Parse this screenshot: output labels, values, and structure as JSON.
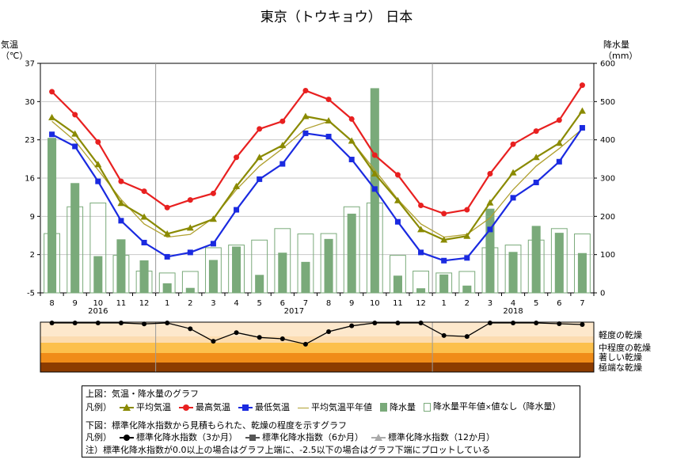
{
  "page": {
    "title": "東京（トウキョウ） 日本"
  },
  "colors": {
    "avg": "#8a8a00",
    "max": "#e82020",
    "min": "#1a2ae0",
    "avg_normal": "#b0a030",
    "bar": "#7aaa7a",
    "dry_mild": "#fcdcb0",
    "dry_moderate": "#fcc04c",
    "dry_severe": "#f08c18",
    "dry_extreme": "#8c3c00"
  },
  "chart_data": [
    {
      "type": "line",
      "title": "東京（トウキョウ） 日本",
      "months": [
        "8",
        "9",
        "10",
        "11",
        "12",
        "1",
        "2",
        "3",
        "4",
        "5",
        "6",
        "7",
        "8",
        "9",
        "10",
        "11",
        "12",
        "1",
        "2",
        "3",
        "4",
        "5",
        "6",
        "7"
      ],
      "years": [
        {
          "label": "2016",
          "from": 0,
          "to": 4
        },
        {
          "label": "2017",
          "from": 5,
          "to": 16
        },
        {
          "label": "2018",
          "from": 17,
          "to": 23
        }
      ],
      "y_left": {
        "label_line1": "気温",
        "label_line2": "（℃）",
        "min": -5,
        "max": 37,
        "ticks": [
          -5,
          2,
          9,
          16,
          23,
          30,
          37
        ]
      },
      "y_right": {
        "label_line1": "降水量",
        "label_line2": "（mm）",
        "min": 0,
        "max": 600,
        "ticks": [
          0,
          100,
          200,
          300,
          400,
          500,
          600
        ]
      },
      "series": [
        {
          "name": "最高気温",
          "key": "max",
          "axis": "left",
          "marker": "circle",
          "values": [
            31.8,
            27.6,
            22.6,
            15.4,
            13.6,
            10.6,
            12.0,
            13.2,
            19.8,
            25.0,
            26.4,
            32.0,
            30.4,
            26.8,
            20.2,
            16.6,
            11.0,
            9.5,
            10.2,
            16.8,
            22.2,
            24.6,
            26.6,
            33.0
          ]
        },
        {
          "name": "平均気温",
          "key": "avg",
          "axis": "left",
          "marker": "triangle",
          "values": [
            27.1,
            24.1,
            18.5,
            11.4,
            8.9,
            5.8,
            6.9,
            8.5,
            14.5,
            19.8,
            22.0,
            27.3,
            26.5,
            22.8,
            16.8,
            11.9,
            6.6,
            4.7,
            5.4,
            11.5,
            17.0,
            19.8,
            22.4,
            28.3
          ]
        },
        {
          "name": "最低気温",
          "key": "min",
          "axis": "left",
          "marker": "square",
          "values": [
            24.0,
            21.8,
            15.4,
            8.2,
            4.2,
            1.6,
            2.4,
            4.0,
            10.2,
            15.8,
            18.6,
            24.2,
            23.6,
            19.4,
            14.0,
            8.0,
            2.4,
            0.9,
            1.4,
            6.6,
            12.4,
            15.2,
            19.0,
            25.2
          ]
        },
        {
          "name": "平均気温平年値",
          "key": "avg_normal",
          "axis": "left",
          "marker": "none",
          "values": [
            26.4,
            22.8,
            17.5,
            12.1,
            7.6,
            5.2,
            5.7,
            8.7,
            13.9,
            18.2,
            21.4,
            25.0,
            26.4,
            22.8,
            17.5,
            12.1,
            7.6,
            5.2,
            5.7,
            8.7,
            13.9,
            18.2,
            21.4,
            25.0
          ]
        },
        {
          "name": "降水量",
          "key": "precip",
          "axis": "right",
          "type": "bar",
          "values": [
            405,
            287,
            96,
            140,
            85,
            25,
            13,
            86,
            121,
            47,
            105,
            81,
            141,
            207,
            535,
            45,
            12,
            48,
            19,
            220,
            107,
            175,
            157,
            104
          ]
        },
        {
          "name": "降水量平年値",
          "key": "precip_normal",
          "axis": "right",
          "type": "bar_outline",
          "values": [
            155,
            225,
            235,
            98,
            57,
            52,
            56,
            118,
            125,
            138,
            168,
            154,
            155,
            225,
            235,
            98,
            57,
            52,
            56,
            118,
            125,
            138,
            168,
            154
          ]
        }
      ]
    },
    {
      "type": "line",
      "title": "標準化降水指数",
      "ylim": [
        -2.5,
        0
      ],
      "series": [
        {
          "name": "標準化降水指数（3か月）",
          "key": "spi3",
          "marker": "circle",
          "values": [
            0,
            0,
            0,
            0,
            -0.05,
            0,
            -0.3,
            -0.95,
            -0.5,
            -0.75,
            -0.82,
            -1.1,
            -0.45,
            -0.15,
            0,
            0,
            0,
            -0.65,
            -0.7,
            0,
            0,
            0,
            -0.04,
            -0.08
          ]
        }
      ],
      "bands": [
        {
          "label": "軽度の乾燥",
          "color_key": "dry_mild"
        },
        {
          "label": "中程度の乾燥",
          "color_key": "dry_moderate"
        },
        {
          "label": "著しい乾燥",
          "color_key": "dry_severe"
        },
        {
          "label": "極端な乾燥",
          "color_key": "dry_extreme"
        }
      ]
    }
  ],
  "legend": {
    "top_caption": "上図：気温・降水量のグラフ",
    "prefix": "凡例）",
    "items": {
      "avg": "平均気温",
      "max": "最高気温",
      "min": "最低気温",
      "avg_normal": "平均気温平年値",
      "precip": "降水量",
      "precip_normal": "降水量平年値"
    },
    "no_value_note": "値なし（降水量）",
    "bottom_caption": "下図：標準化降水指数から見積もられた、乾燥の程度を示すグラフ",
    "spi_items": {
      "spi3": "標準化降水指数（3か月）",
      "spi6": "標準化降水指数（6か月）",
      "spi12": "標準化降水指数（12か月）"
    },
    "note": "注）標準化降水指数が0.0以上の場合はグラフ上端に、-2.5以下の場合はグラフ下端にプロットしている"
  }
}
